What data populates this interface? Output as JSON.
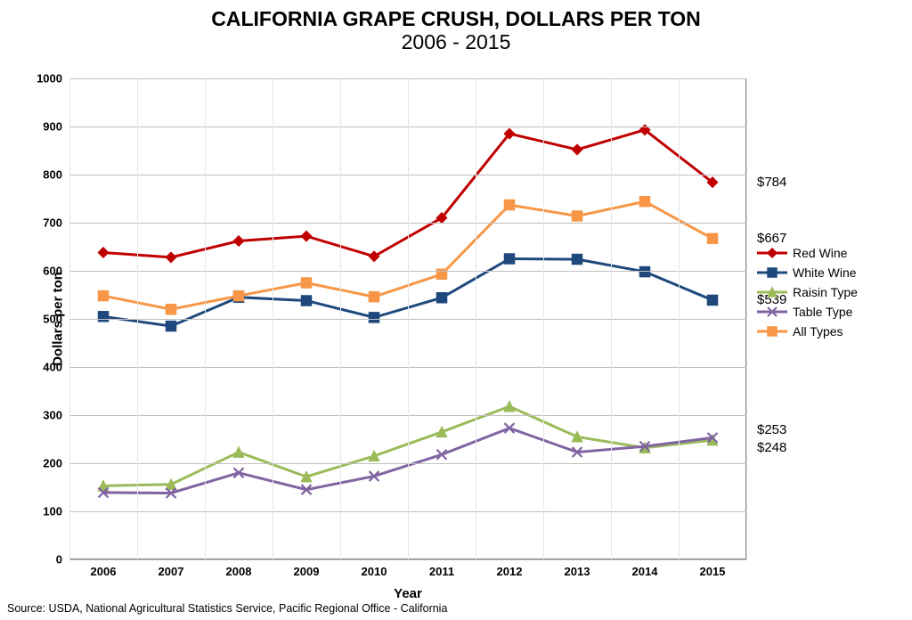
{
  "title": {
    "main": "CALIFORNIA GRAPE CRUSH, DOLLARS PER TON",
    "sub": "2006 - 2015",
    "fontsize": 23,
    "color": "#000000"
  },
  "chart": {
    "type": "line",
    "background_color": "#ffffff",
    "border_color": "#808080",
    "grid_major_color": "#bfbfbf",
    "grid_minor_color": "#e6e6e6",
    "xlabel": "Year",
    "ylabel": "Dollars per ton",
    "axis_title_fontsize": 15,
    "tick_fontsize": 13,
    "ylim": [
      0,
      1000
    ],
    "ytick_step": 100,
    "categories": [
      "2006",
      "2007",
      "2008",
      "2009",
      "2010",
      "2011",
      "2012",
      "2013",
      "2014",
      "2015"
    ],
    "line_width": 3,
    "marker_size": 11,
    "series": [
      {
        "name": "Red Wine",
        "color": "#c00000",
        "marker": "diamond",
        "values": [
          638,
          628,
          662,
          672,
          630,
          710,
          885,
          852,
          893,
          784
        ],
        "end_label": "$784"
      },
      {
        "name": "White Wine",
        "color": "#1f497d",
        "marker": "square",
        "values": [
          505,
          485,
          545,
          538,
          503,
          544,
          625,
          624,
          598,
          539
        ],
        "end_label": "$539"
      },
      {
        "name": "Raisin Type",
        "color": "#9bbb59",
        "marker": "triangle",
        "values": [
          153,
          156,
          223,
          172,
          215,
          265,
          318,
          255,
          232,
          248
        ],
        "end_label": "$248"
      },
      {
        "name": "Table Type",
        "color": "#8064a2",
        "marker": "x",
        "values": [
          139,
          138,
          180,
          145,
          173,
          218,
          273,
          223,
          235,
          253
        ],
        "end_label": "$253"
      },
      {
        "name": "All Types",
        "color": "#f79646",
        "marker": "square",
        "values": [
          548,
          520,
          548,
          575,
          546,
          593,
          737,
          714,
          744,
          667
        ],
        "end_label": "$667"
      }
    ],
    "end_label_fontsize": 15,
    "end_label_color": "#000000"
  },
  "legend": {
    "items": [
      "Red Wine",
      "White Wine",
      "Raisin Type",
      "Table Type",
      "All Types"
    ],
    "fontsize": 14
  },
  "source": "Source: USDA, National Agricultural Statistics Service, Pacific Regional Office - California"
}
